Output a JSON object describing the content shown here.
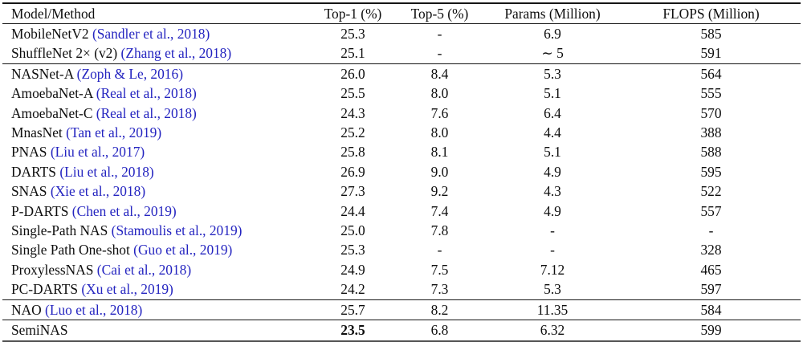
{
  "colors": {
    "citation_blue": "#2424c0",
    "rule_black": "#151515",
    "bottom_rule_gray": "#4f4f4f",
    "text": "#0e0e0e",
    "background": "#ffffff"
  },
  "table": {
    "columns": [
      "Model/Method",
      "Top-1 (%)",
      "Top-5 (%)",
      "Params (Million)",
      "FLOPS (Million)"
    ],
    "groups": [
      {
        "rows": [
          {
            "model": "MobileNetV2",
            "citation": "(Sandler et al., 2018)",
            "top1": "25.3",
            "top5": "-",
            "params": "6.9",
            "flops": "585"
          },
          {
            "model": "ShuffleNet 2× (v2)",
            "citation": "(Zhang et al., 2018)",
            "top1": "25.1",
            "top5": "-",
            "params": "∼ 5",
            "flops": "591"
          }
        ]
      },
      {
        "rows": [
          {
            "model": "NASNet-A",
            "citation": "(Zoph & Le, 2016)",
            "top1": "26.0",
            "top5": "8.4",
            "params": "5.3",
            "flops": "564"
          },
          {
            "model": "AmoebaNet-A",
            "citation": "(Real et al., 2018)",
            "top1": "25.5",
            "top5": "8.0",
            "params": "5.1",
            "flops": "555"
          },
          {
            "model": "AmoebaNet-C",
            "citation": "(Real et al., 2018)",
            "top1": "24.3",
            "top5": "7.6",
            "params": "6.4",
            "flops": "570"
          },
          {
            "model": "MnasNet",
            "citation": "(Tan et al., 2019)",
            "top1": "25.2",
            "top5": "8.0",
            "params": "4.4",
            "flops": "388"
          },
          {
            "model": "PNAS",
            "citation": "(Liu et al., 2017)",
            "top1": "25.8",
            "top5": "8.1",
            "params": "5.1",
            "flops": "588"
          },
          {
            "model": "DARTS",
            "citation": "(Liu et al., 2018)",
            "top1": "26.9",
            "top5": "9.0",
            "params": "4.9",
            "flops": "595"
          },
          {
            "model": "SNAS",
            "citation": "(Xie et al., 2018)",
            "top1": "27.3",
            "top5": "9.2",
            "params": "4.3",
            "flops": "522"
          },
          {
            "model": "P-DARTS",
            "citation": "(Chen et al., 2019)",
            "top1": "24.4",
            "top5": "7.4",
            "params": "4.9",
            "flops": "557"
          },
          {
            "model": "Single-Path NAS",
            "citation": "(Stamoulis et al., 2019)",
            "top1": "25.0",
            "top5": "7.8",
            "params": "-",
            "flops": "-"
          },
          {
            "model": "Single Path One-shot",
            "citation": "(Guo et al., 2019)",
            "top1": "25.3",
            "top5": "-",
            "params": "-",
            "flops": "328"
          },
          {
            "model": "ProxylessNAS",
            "citation": "(Cai et al., 2018)",
            "top1": "24.9",
            "top5": "7.5",
            "params": "7.12",
            "flops": "465"
          },
          {
            "model": "PC-DARTS",
            "citation": "(Xu et al., 2019)",
            "top1": "24.2",
            "top5": "7.3",
            "params": "5.3",
            "flops": "597"
          }
        ]
      },
      {
        "rows": [
          {
            "model": "NAO",
            "citation": "(Luo et al., 2018)",
            "top1": "25.7",
            "top5": "8.2",
            "params": "11.35",
            "flops": "584"
          }
        ]
      },
      {
        "rows": [
          {
            "model": "SemiNAS",
            "citation": "",
            "top1": "23.5",
            "top1_bold": true,
            "top5": "6.8",
            "params": "6.32",
            "flops": "599"
          }
        ]
      }
    ]
  }
}
